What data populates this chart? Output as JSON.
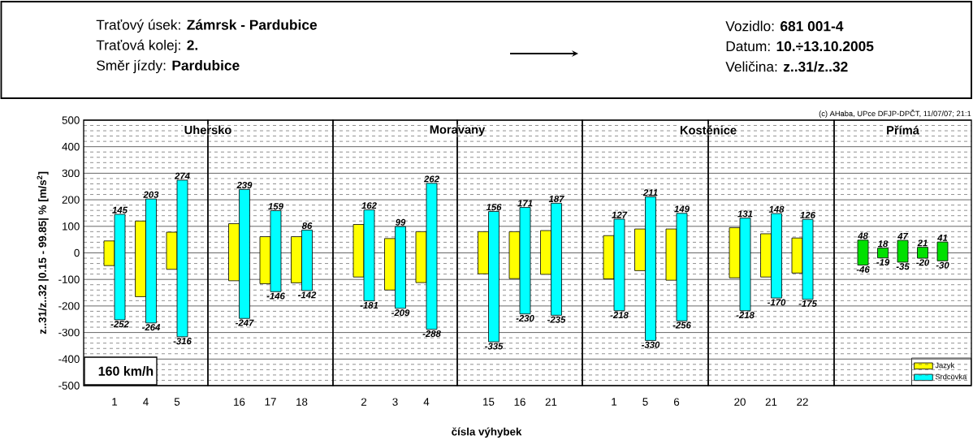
{
  "chart_data": [
    {
      "type": "bar",
      "title": "Uhersko",
      "ylabel": "z..31/z..32 |0.15 - 99.85| % [m/s$^{2}$]",
      "ylim": [
        -500,
        500
      ],
      "yticks": [
        -500,
        -400,
        -300,
        -200,
        -100,
        0,
        100,
        200,
        300,
        400,
        500
      ],
      "categories": [
        "1",
        "4",
        "5"
      ],
      "grid": "y",
      "series": [
        {
          "color": "#ffff00",
          "base": [
            -48,
            -165,
            -62
          ],
          "values": [
            93,
            285,
            140
          ]
        },
        {
          "color": "#00ffff",
          "base": [
            -252,
            -264,
            -316
          ],
          "values": [
            397,
            467,
            590
          ]
        }
      ],
      "annotations": [
        "Traťový úsek: **Zámrsk - Pardubice**",
        "Traťová kolej: **2.**",
        "Směr jízdy: **Pardubice**",
        "Vozidlo: **681 001-4**",
        "Datum: **10.÷13.10.2005**",
        "Veličina: **z..31/z..32**",
        "160 km/h",
        {
          "text": "145",
          "x": "1",
          "y": 145
        },
        {
          "text": "-252",
          "x": "1",
          "y": -252
        },
        {
          "text": "203",
          "x": "4",
          "y": 203
        },
        {
          "text": "-264",
          "x": "4",
          "y": -264
        },
        {
          "text": "274",
          "x": "5",
          "y": 274
        },
        {
          "text": "-316",
          "x": "5",
          "y": -316
        }
      ]
    },
    {
      "type": "bar",
      "ylim": [
        -500,
        500
      ],
      "yticks": [
        -500,
        -400,
        -300,
        -200,
        -100,
        0,
        100,
        200,
        300,
        400,
        500
      ],
      "categories": [
        "16",
        "17",
        "18"
      ],
      "grid": "y",
      "tick_labels": "x",
      "series": [
        {
          "color": "#ffff00",
          "base": [
            -105,
            -116,
            -113
          ],
          "values": [
            215,
            177,
            174
          ]
        },
        {
          "color": "#00ffff",
          "base": [
            -247,
            -146,
            -142
          ],
          "values": [
            486,
            305,
            228
          ]
        }
      ],
      "annotations": [
        {
          "text": "239",
          "x": "16",
          "y": 239
        },
        {
          "text": "-247",
          "x": "16",
          "y": -247
        },
        {
          "text": "159",
          "x": "17",
          "y": 159
        },
        {
          "text": "-146",
          "x": "17",
          "y": -146
        },
        {
          "text": "86",
          "x": "18",
          "y": 86
        },
        {
          "text": "-142",
          "x": "18",
          "y": -142
        }
      ]
    },
    {
      "type": "bar",
      "title": "Moravany",
      "ylim": [
        -500,
        500
      ],
      "yticks": [
        -500,
        -400,
        -300,
        -200,
        -100,
        0,
        100,
        200,
        300,
        400,
        500
      ],
      "categories": [
        "2",
        "3",
        "4"
      ],
      "grid": "y",
      "tick_labels": "x",
      "series": [
        {
          "color": "#ffff00",
          "base": [
            -91,
            -140,
            -112
          ],
          "values": [
            198,
            194,
            192
          ]
        },
        {
          "color": "#00ffff",
          "base": [
            -181,
            -209,
            -288
          ],
          "values": [
            343,
            308,
            550
          ]
        }
      ],
      "annotations": [
        {
          "text": "162",
          "x": "2",
          "y": 162
        },
        {
          "text": "-181",
          "x": "2",
          "y": -181
        },
        {
          "text": "99",
          "x": "3",
          "y": 99
        },
        {
          "text": "-209",
          "x": "3",
          "y": -209
        },
        {
          "text": "262",
          "x": "4",
          "y": 262
        },
        {
          "text": "-288",
          "x": "4",
          "y": -288
        }
      ]
    },
    {
      "type": "bar",
      "xlabel": "čísla výhybek",
      "ylim": [
        -500,
        500
      ],
      "yticks": [
        -500,
        -400,
        -300,
        -200,
        -100,
        0,
        100,
        200,
        300,
        400,
        500
      ],
      "categories": [
        "15",
        "16",
        "21"
      ],
      "grid": "y",
      "tick_labels": "x",
      "series": [
        {
          "color": "#ffff00",
          "base": [
            -79,
            -97,
            -81
          ],
          "values": [
            159,
            177,
            165
          ]
        },
        {
          "color": "#00ffff",
          "base": [
            -335,
            -230,
            -235
          ],
          "values": [
            491,
            401,
            422
          ]
        }
      ],
      "annotations": [
        {
          "text": "156",
          "x": "15",
          "y": 156
        },
        {
          "text": "-335",
          "x": "15",
          "y": -335
        },
        {
          "text": "171",
          "x": "16",
          "y": 171
        },
        {
          "text": "-230",
          "x": "16",
          "y": -230
        },
        {
          "text": "187",
          "x": "21",
          "y": 187
        },
        {
          "text": "-235",
          "x": "21",
          "y": -235
        }
      ]
    },
    {
      "type": "bar",
      "title": "Kostěnice",
      "ylim": [
        -500,
        500
      ],
      "yticks": [
        -500,
        -400,
        -300,
        -200,
        -100,
        0,
        100,
        200,
        300,
        400,
        500
      ],
      "categories": [
        "1",
        "5",
        "6"
      ],
      "grid": "y",
      "tick_labels": "x",
      "series": [
        {
          "color": "#ffff00",
          "base": [
            -98,
            -67,
            -103
          ],
          "values": [
            163,
            157,
            193
          ]
        },
        {
          "color": "#00ffff",
          "base": [
            -218,
            -330,
            -256
          ],
          "values": [
            345,
            541,
            405
          ]
        }
      ],
      "annotations": [
        {
          "text": "127",
          "x": "1",
          "y": 127
        },
        {
          "text": "-218",
          "x": "1",
          "y": -218
        },
        {
          "text": "211",
          "x": "5",
          "y": 211
        },
        {
          "text": "-330",
          "x": "5",
          "y": -330
        },
        {
          "text": "149",
          "x": "6",
          "y": 149
        },
        {
          "text": "-256",
          "x": "6",
          "y": -256
        }
      ]
    },
    {
      "type": "bar",
      "ylim": [
        -500,
        500
      ],
      "yticks": [
        -500,
        -400,
        -300,
        -200,
        -100,
        0,
        100,
        200,
        300,
        400,
        500
      ],
      "categories": [
        "20",
        "21",
        "22"
      ],
      "grid": "y",
      "tick_labels": "x",
      "legend": "bottom right",
      "series": [
        {
          "name": "Jazyk",
          "color": "#ffff00",
          "base": [
            -94,
            -91,
            -76
          ],
          "values": [
            189,
            163,
            132
          ]
        },
        {
          "name": "Srdcovka",
          "color": "#00ffff",
          "base": [
            -218,
            -170,
            -175
          ],
          "values": [
            349,
            318,
            301
          ]
        }
      ],
      "annotations": [
        {
          "text": "131",
          "x": "20",
          "y": 131
        },
        {
          "text": "-218",
          "x": "20",
          "y": -218
        },
        {
          "text": "148",
          "x": "21",
          "y": 148
        },
        {
          "text": "-170",
          "x": "21",
          "y": -170
        },
        {
          "text": "126",
          "x": "22",
          "y": 126
        },
        {
          "text": "-175",
          "x": "22",
          "y": -175
        }
      ]
    },
    {
      "type": "bar",
      "title": "Přímá",
      "ylim": [
        -500,
        500
      ],
      "yticks": [
        -500,
        -400,
        -300,
        -200,
        -100,
        0,
        100,
        200,
        300,
        400,
        500
      ],
      "categories": [
        null,
        null,
        null,
        null,
        null
      ],
      "grid": "y",
      "tick_labels": false,
      "series": [
        {
          "color": "#00e000",
          "base": [
            -46,
            -19,
            -35,
            -20,
            -30
          ],
          "values": [
            94,
            37,
            82,
            41,
            71
          ]
        }
      ],
      "annotations": [
        "(c) AHaba, UPce DFJP-DPČT, 11/07/07; 21:1",
        {
          "text": "48",
          "y": 48
        },
        {
          "text": "-46",
          "y": -46
        },
        {
          "text": "18",
          "y": 18
        },
        {
          "text": "-19",
          "y": -19
        },
        {
          "text": "47",
          "y": 47
        },
        {
          "text": "-35",
          "y": -35
        },
        {
          "text": "21",
          "y": 21
        },
        {
          "text": "-20",
          "y": -20
        },
        {
          "text": "41",
          "y": 41
        },
        {
          "text": "-30",
          "y": -30
        }
      ]
    }
  ]
}
